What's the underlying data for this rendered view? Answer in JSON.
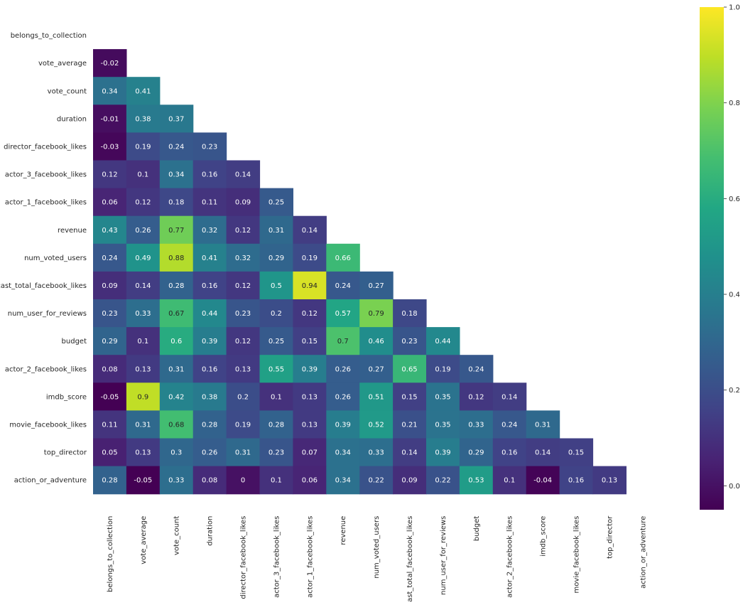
{
  "chart_data": {
    "type": "heatmap",
    "title": "",
    "xlabel": "",
    "ylabel": "",
    "grid": false,
    "mask": "upper-triangle-including-diagonal",
    "colormap": "viridis",
    "colorbar": {
      "vmin": -0.05,
      "vmax": 1.0,
      "ticks": [
        0.0,
        0.2,
        0.4,
        0.6,
        0.8,
        1.0
      ],
      "tick_labels": [
        "0.0",
        "0.2",
        "0.4",
        "0.6",
        "0.8",
        "1.0"
      ],
      "placement": "right"
    },
    "labels": [
      "belongs_to_collection",
      "vote_average",
      "vote_count",
      "duration",
      "director_facebook_likes",
      "actor_3_facebook_likes",
      "actor_1_facebook_likes",
      "revenue",
      "num_voted_users",
      "cast_total_facebook_likes",
      "num_user_for_reviews",
      "budget",
      "actor_2_facebook_likes",
      "imdb_score",
      "movie_facebook_likes",
      "top_director",
      "action_or_adventure"
    ],
    "rows": [
      [],
      [
        -0.02
      ],
      [
        0.34,
        0.41
      ],
      [
        -0.01,
        0.38,
        0.37
      ],
      [
        -0.03,
        0.19,
        0.24,
        0.23
      ],
      [
        0.12,
        0.1,
        0.34,
        0.16,
        0.14
      ],
      [
        0.06,
        0.12,
        0.18,
        0.11,
        0.09,
        0.25
      ],
      [
        0.43,
        0.26,
        0.77,
        0.32,
        0.12,
        0.31,
        0.14
      ],
      [
        0.24,
        0.49,
        0.88,
        0.41,
        0.32,
        0.29,
        0.19,
        0.66
      ],
      [
        0.09,
        0.14,
        0.28,
        0.16,
        0.12,
        0.5,
        0.94,
        0.24,
        0.27
      ],
      [
        0.23,
        0.33,
        0.67,
        0.44,
        0.23,
        0.2,
        0.12,
        0.57,
        0.79,
        0.18
      ],
      [
        0.29,
        0.1,
        0.6,
        0.39,
        0.12,
        0.25,
        0.15,
        0.7,
        0.46,
        0.23,
        0.44
      ],
      [
        0.08,
        0.13,
        0.31,
        0.16,
        0.13,
        0.55,
        0.39,
        0.26,
        0.27,
        0.65,
        0.19,
        0.24
      ],
      [
        -0.05,
        0.9,
        0.42,
        0.38,
        0.2,
        0.1,
        0.13,
        0.26,
        0.51,
        0.15,
        0.35,
        0.12,
        0.14
      ],
      [
        0.11,
        0.31,
        0.68,
        0.28,
        0.19,
        0.28,
        0.13,
        0.39,
        0.52,
        0.21,
        0.35,
        0.33,
        0.24,
        0.31
      ],
      [
        0.05,
        0.13,
        0.3,
        0.26,
        0.31,
        0.23,
        0.07,
        0.34,
        0.33,
        0.14,
        0.39,
        0.29,
        0.16,
        0.14,
        0.15
      ],
      [
        0.28,
        -0.05,
        0.33,
        0.08,
        0,
        0.1,
        0.06,
        0.34,
        0.22,
        0.09,
        0.22,
        0.53,
        0.1,
        -0.04,
        0.16,
        0.13
      ]
    ]
  }
}
